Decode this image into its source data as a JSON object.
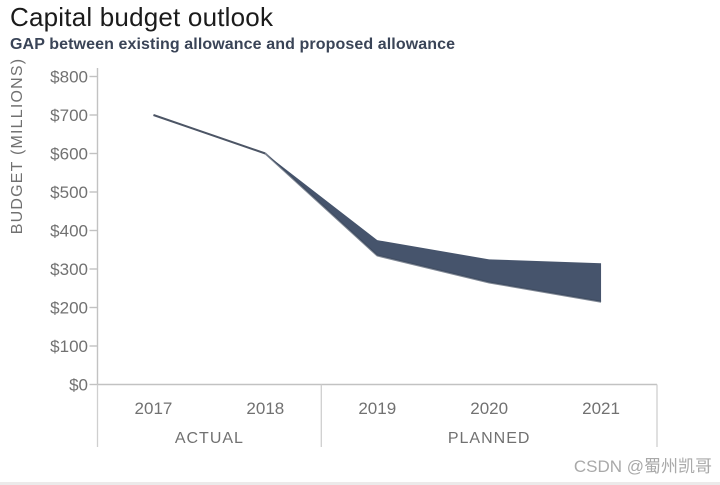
{
  "page": {
    "title": "Capital budget outlook",
    "subtitle": "GAP between existing allowance and proposed allowance"
  },
  "watermark": {
    "text": "CSDN @蜀州凯哥"
  },
  "colors": {
    "band": "#46546C",
    "band_edge": "#3A465A",
    "actual_line": "#4C5565",
    "axis": "#C2C2C2",
    "separator": "#CFCFCF",
    "axis_text": "#717171",
    "title": "#1B1B1B",
    "subtitle": "#3A4457",
    "watermark": "#A9A9A9"
  },
  "chart_data": {
    "type": "area",
    "title": "Capital budget outlook",
    "subtitle": "GAP between existing allowance and proposed allowance",
    "xlabel": "",
    "ylabel": "BUDGET (MILLIONS)",
    "ylim": [
      0,
      800
    ],
    "y_tick_step": 100,
    "y_tick_labels": [
      "$0",
      "$100",
      "$200",
      "$300",
      "$400",
      "$500",
      "$600",
      "$700",
      "$800"
    ],
    "categories": [
      "2017",
      "2018",
      "2019",
      "2020",
      "2021"
    ],
    "series": [
      {
        "name": "actual budget",
        "role": "line",
        "values": [
          700,
          600,
          null,
          null,
          null
        ]
      },
      {
        "name": "proposed allowance",
        "role": "band-upper",
        "values": [
          null,
          600,
          375,
          325,
          315
        ]
      },
      {
        "name": "existing allowance",
        "role": "band-lower",
        "values": [
          null,
          600,
          335,
          265,
          215
        ]
      }
    ],
    "groups": [
      {
        "label": "ACTUAL",
        "from": "2017",
        "to": "2018"
      },
      {
        "label": "PLANNED",
        "from": "2019",
        "to": "2021"
      }
    ],
    "grid": false,
    "legend": "none"
  }
}
